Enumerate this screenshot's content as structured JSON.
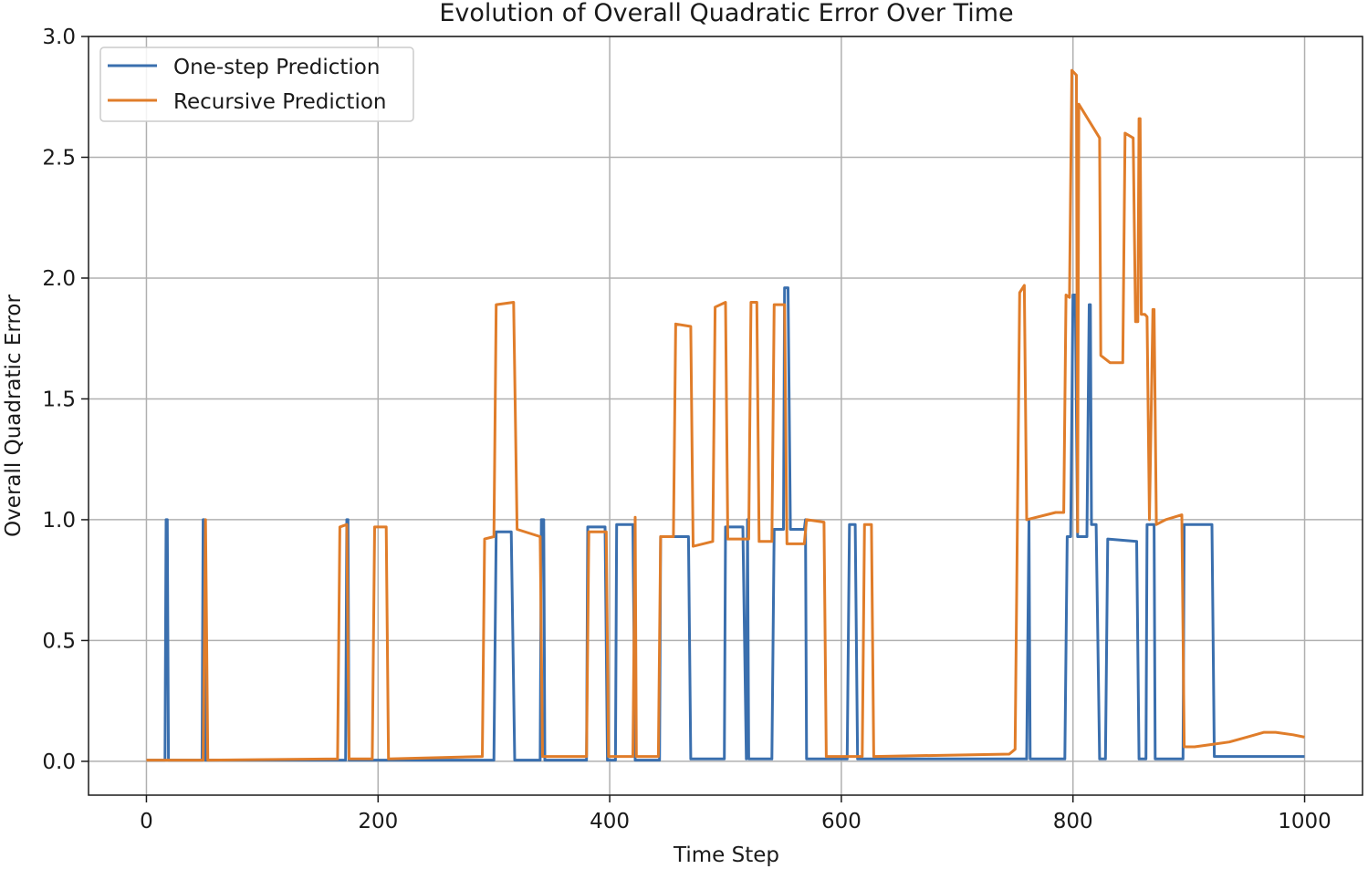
{
  "chart_data": {
    "type": "line",
    "title": "Evolution of Overall Quadratic Error Over Time",
    "xlabel": "Time Step",
    "ylabel": "Overall Quadratic Error",
    "xlim": [
      -50,
      1050
    ],
    "ylim": [
      -0.14,
      3.0
    ],
    "xticks": [
      0,
      200,
      400,
      600,
      800,
      1000
    ],
    "yticks": [
      0.0,
      0.5,
      1.0,
      1.5,
      2.0,
      2.5,
      3.0
    ],
    "xtick_labels": [
      "0",
      "200",
      "400",
      "600",
      "800",
      "1000"
    ],
    "ytick_labels": [
      "0.0",
      "0.5",
      "1.0",
      "1.5",
      "2.0",
      "2.5",
      "3.0"
    ],
    "grid": true,
    "legend_position": "top-left",
    "series": [
      {
        "name": "One-step Prediction",
        "color": "#3a6fae",
        "points": [
          [
            0,
            0.005
          ],
          [
            16,
            0.005
          ],
          [
            17,
            1.0
          ],
          [
            18,
            1.0
          ],
          [
            19,
            0.005
          ],
          [
            48,
            0.005
          ],
          [
            49,
            1.0
          ],
          [
            50,
            1.0
          ],
          [
            51,
            0.005
          ],
          [
            172,
            0.005
          ],
          [
            173,
            1.0
          ],
          [
            174,
            1.0
          ],
          [
            175,
            0.005
          ],
          [
            300,
            0.005
          ],
          [
            302,
            0.95
          ],
          [
            315,
            0.95
          ],
          [
            318,
            0.005
          ],
          [
            340,
            0.005
          ],
          [
            341,
            1.0
          ],
          [
            343,
            1.0
          ],
          [
            344,
            0.005
          ],
          [
            380,
            0.005
          ],
          [
            381,
            0.97
          ],
          [
            396,
            0.97
          ],
          [
            398,
            0.005
          ],
          [
            405,
            0.005
          ],
          [
            406,
            0.98
          ],
          [
            420,
            0.98
          ],
          [
            422,
            0.005
          ],
          [
            443,
            0.005
          ],
          [
            444,
            0.93
          ],
          [
            468,
            0.93
          ],
          [
            470,
            0.01
          ],
          [
            499,
            0.01
          ],
          [
            500,
            0.97
          ],
          [
            515,
            0.97
          ],
          [
            518,
            0.01
          ],
          [
            519,
            1.0
          ],
          [
            520,
            0.01
          ],
          [
            540,
            0.01
          ],
          [
            542,
            0.96
          ],
          [
            550,
            0.96
          ],
          [
            551,
            1.96
          ],
          [
            554,
            1.96
          ],
          [
            556,
            0.96
          ],
          [
            568,
            0.96
          ],
          [
            569,
            1.0
          ],
          [
            570,
            0.01
          ],
          [
            605,
            0.01
          ],
          [
            607,
            0.98
          ],
          [
            612,
            0.98
          ],
          [
            614,
            0.01
          ],
          [
            760,
            0.01
          ],
          [
            762,
            1.0
          ],
          [
            763,
            0.01
          ],
          [
            793,
            0.01
          ],
          [
            795,
            0.93
          ],
          [
            798,
            0.93
          ],
          [
            800,
            1.93
          ],
          [
            802,
            1.93
          ],
          [
            804,
            0.93
          ],
          [
            812,
            0.93
          ],
          [
            814,
            1.89
          ],
          [
            815,
            1.89
          ],
          [
            816,
            0.98
          ],
          [
            820,
            0.98
          ],
          [
            823,
            0.01
          ],
          [
            828,
            0.01
          ],
          [
            830,
            0.92
          ],
          [
            855,
            0.91
          ],
          [
            857,
            0.01
          ],
          [
            863,
            0.01
          ],
          [
            864,
            0.98
          ],
          [
            870,
            0.98
          ],
          [
            871,
            0.01
          ],
          [
            895,
            0.01
          ],
          [
            896,
            0.98
          ],
          [
            920,
            0.98
          ],
          [
            922,
            0.02
          ],
          [
            1000,
            0.02
          ]
        ]
      },
      {
        "name": "Recursive Prediction",
        "color": "#e07d2a",
        "points": [
          [
            0,
            0.005
          ],
          [
            49,
            0.005
          ],
          [
            51,
            1.0
          ],
          [
            53,
            0.005
          ],
          [
            165,
            0.01
          ],
          [
            167,
            0.97
          ],
          [
            173,
            0.98
          ],
          [
            175,
            0.01
          ],
          [
            195,
            0.01
          ],
          [
            197,
            0.97
          ],
          [
            207,
            0.97
          ],
          [
            209,
            0.01
          ],
          [
            290,
            0.02
          ],
          [
            292,
            0.92
          ],
          [
            300,
            0.93
          ],
          [
            302,
            1.89
          ],
          [
            317,
            1.9
          ],
          [
            320,
            0.96
          ],
          [
            340,
            0.93
          ],
          [
            342,
            0.02
          ],
          [
            380,
            0.02
          ],
          [
            382,
            0.95
          ],
          [
            397,
            0.95
          ],
          [
            399,
            0.02
          ],
          [
            420,
            0.02
          ],
          [
            422,
            1.01
          ],
          [
            423,
            0.02
          ],
          [
            442,
            0.02
          ],
          [
            444,
            0.93
          ],
          [
            455,
            0.93
          ],
          [
            457,
            1.81
          ],
          [
            470,
            1.8
          ],
          [
            472,
            0.89
          ],
          [
            489,
            0.91
          ],
          [
            491,
            1.88
          ],
          [
            500,
            1.9
          ],
          [
            502,
            0.92
          ],
          [
            518,
            0.92
          ],
          [
            520,
            0.92
          ],
          [
            522,
            1.9
          ],
          [
            527,
            1.9
          ],
          [
            529,
            0.91
          ],
          [
            540,
            0.91
          ],
          [
            542,
            1.89
          ],
          [
            551,
            1.89
          ],
          [
            553,
            0.9
          ],
          [
            568,
            0.9
          ],
          [
            570,
            1.0
          ],
          [
            585,
            0.99
          ],
          [
            587,
            0.02
          ],
          [
            618,
            0.02
          ],
          [
            620,
            0.98
          ],
          [
            626,
            0.98
          ],
          [
            628,
            0.02
          ],
          [
            745,
            0.03
          ],
          [
            750,
            0.05
          ],
          [
            752,
            0.98
          ],
          [
            754,
            1.94
          ],
          [
            758,
            1.97
          ],
          [
            760,
            1.0
          ],
          [
            785,
            1.03
          ],
          [
            792,
            1.03
          ],
          [
            794,
            1.93
          ],
          [
            797,
            1.92
          ],
          [
            799,
            2.86
          ],
          [
            803,
            2.84
          ],
          [
            804,
            0.95
          ],
          [
            805,
            2.72
          ],
          [
            823,
            2.58
          ],
          [
            824,
            1.68
          ],
          [
            832,
            1.65
          ],
          [
            843,
            1.65
          ],
          [
            845,
            2.6
          ],
          [
            852,
            2.58
          ],
          [
            854,
            1.82
          ],
          [
            856,
            1.82
          ],
          [
            857,
            2.66
          ],
          [
            858,
            2.66
          ],
          [
            859,
            1.85
          ],
          [
            862,
            1.85
          ],
          [
            864,
            1.84
          ],
          [
            866,
            1.0
          ],
          [
            869,
            1.87
          ],
          [
            870,
            1.87
          ],
          [
            872,
            0.98
          ],
          [
            880,
            1.0
          ],
          [
            894,
            1.02
          ],
          [
            896,
            0.06
          ],
          [
            905,
            0.06
          ],
          [
            920,
            0.07
          ],
          [
            935,
            0.08
          ],
          [
            950,
            0.1
          ],
          [
            965,
            0.12
          ],
          [
            975,
            0.12
          ],
          [
            990,
            0.11
          ],
          [
            1000,
            0.1
          ]
        ]
      }
    ]
  }
}
